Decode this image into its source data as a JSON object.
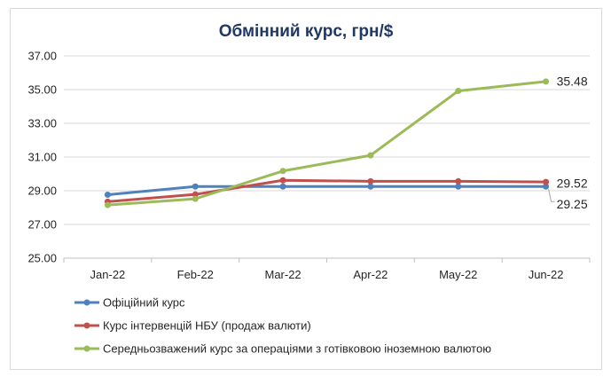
{
  "chart_data": {
    "type": "line",
    "title": "Обмінний курс, грн/$",
    "categories": [
      "Jan-22",
      "Feb-22",
      "Mar-22",
      "Apr-22",
      "May-22",
      "Jun-22"
    ],
    "ylim": [
      25.0,
      37.0
    ],
    "yticks": [
      "25.00",
      "27.00",
      "29.00",
      "31.00",
      "33.00",
      "35.00",
      "37.00"
    ],
    "grid": true,
    "legend_position": "bottom",
    "series": [
      {
        "name": "Офіційний курс",
        "color": "#4f81bd",
        "values": [
          28.76,
          29.25,
          29.25,
          29.25,
          29.25,
          29.25
        ],
        "end_label": "29.25"
      },
      {
        "name": "Курс інтервенцій НБУ (продаж валюти)",
        "color": "#c0504d",
        "values": [
          28.35,
          28.78,
          29.62,
          29.56,
          29.56,
          29.52
        ],
        "end_label": "29.52"
      },
      {
        "name": "Середньозважений курс за операціями з готівковою іноземною валютою",
        "color": "#9bbb59",
        "values": [
          28.15,
          28.52,
          30.17,
          31.1,
          34.92,
          35.48
        ],
        "end_label": "35.48"
      }
    ]
  }
}
